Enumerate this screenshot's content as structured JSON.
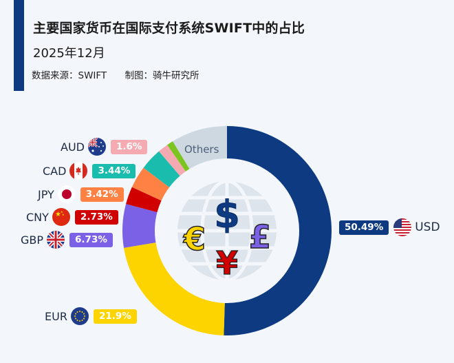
{
  "header": {
    "title": "主要国家货币在国际支付系统SWIFT中的占比",
    "subtitle": "2025年12月",
    "source": "数据来源：SWIFT",
    "credit": "制图：骑牛研究所"
  },
  "labels": {
    "usd": {
      "code": "USD",
      "value": "50.49%"
    },
    "eur": {
      "code": "EUR",
      "value": "21.9%"
    },
    "gbp": {
      "code": "GBP",
      "value": "6.73%"
    },
    "cny": {
      "code": "CNY",
      "value": "2.73%"
    },
    "jpy": {
      "code": "JPY",
      "value": "3.42%"
    },
    "cad": {
      "code": "CAD",
      "value": "3.44%"
    },
    "aud": {
      "code": "AUD",
      "value": "1.6%"
    },
    "others": "Others"
  },
  "center_icons": [
    "dollar-icon",
    "euro-icon",
    "pound-icon",
    "yen-icon",
    "globe-icon"
  ],
  "chart_data": {
    "type": "pie",
    "subtype": "donut",
    "title": "主要国家货币在国际支付系统SWIFT中的占比",
    "subtitle": "2025年12月",
    "source": "SWIFT",
    "categories": [
      "USD",
      "EUR",
      "GBP",
      "CNY",
      "JPY",
      "CAD",
      "AUD",
      "(unlabeled green)",
      "Others"
    ],
    "values": [
      50.49,
      21.9,
      6.73,
      2.73,
      3.42,
      3.44,
      1.6,
      1.0,
      8.69
    ],
    "labeled_values": {
      "USD": 50.49,
      "EUR": 21.9,
      "GBP": 6.73,
      "CNY": 2.73,
      "JPY": 3.42,
      "CAD": 3.44,
      "AUD": 1.6
    },
    "colors": {
      "USD": "#0d3a80",
      "EUR": "#fdd400",
      "GBP": "#7b61e6",
      "CNY": "#d10000",
      "JPY": "#ff8244",
      "CAD": "#1abcad",
      "AUD": "#f4aab0",
      "green": "#7cc520",
      "Others": "#cdd8e1"
    },
    "start_angle": "12 o'clock, clockwise",
    "legend": "inline labels with flags"
  }
}
